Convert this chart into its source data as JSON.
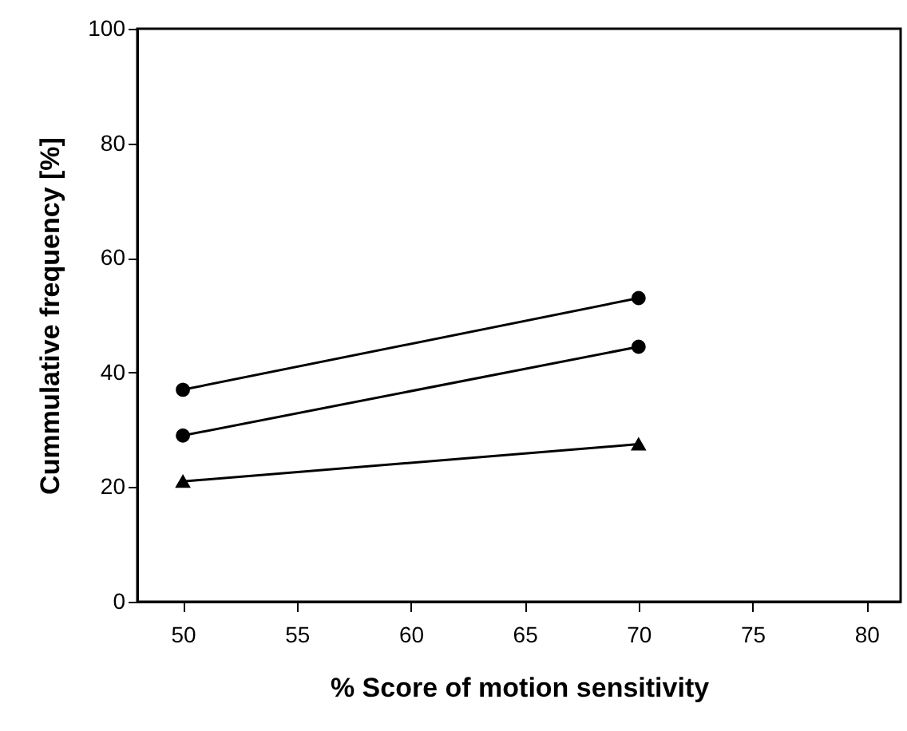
{
  "chart_data": {
    "type": "line",
    "xlabel": "% Score of motion sensitivity",
    "ylabel": "Cummulative frequency [%]",
    "x": [
      50,
      70
    ],
    "series": [
      {
        "color": "#000000",
        "marker": "circle",
        "values": [
          37,
          53
        ]
      },
      {
        "color": "#000000",
        "marker": "circle",
        "values": [
          29,
          44.5
        ]
      },
      {
        "color": "#000000",
        "marker": "triangle",
        "values": [
          21,
          27.5
        ]
      }
    ],
    "xlim": [
      48,
      81.5
    ],
    "xticks": [
      50,
      55,
      60,
      65,
      70,
      75,
      80
    ],
    "ylim": [
      0,
      100
    ],
    "yticks": [
      0,
      20,
      40,
      60,
      80,
      100
    ],
    "grid": false
  }
}
